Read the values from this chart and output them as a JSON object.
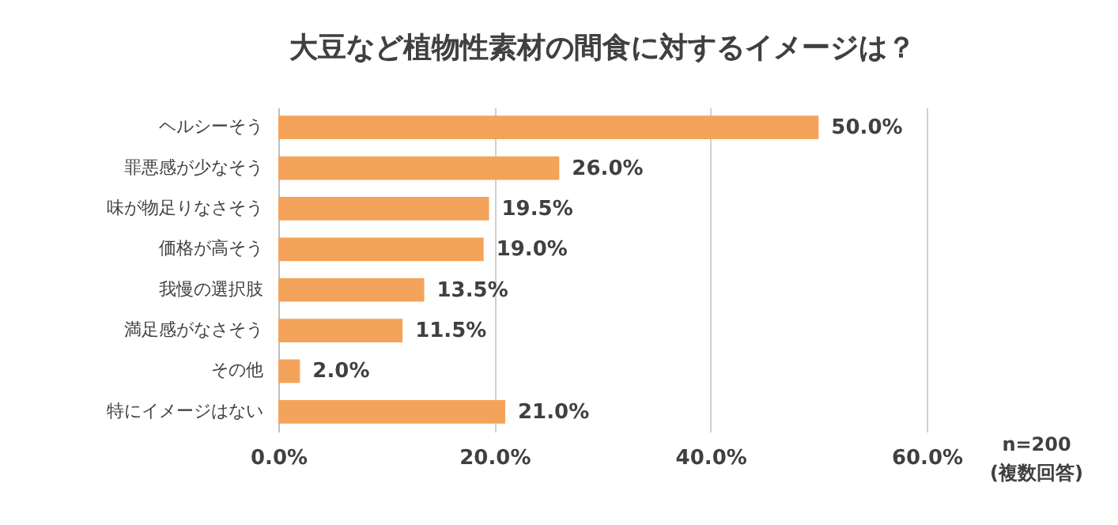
{
  "chart_data": {
    "type": "bar",
    "orientation": "horizontal",
    "title": "大豆など植物性素材の間食に対するイメージは？",
    "categories": [
      "ヘルシーそう",
      "罪悪感が少なそう",
      "味が物足りなさそう",
      "価格が高そう",
      "我慢の選択肢",
      "満足感がなさそう",
      "その他",
      "特にイメージはない"
    ],
    "values": [
      50.0,
      26.0,
      19.5,
      19.0,
      13.5,
      11.5,
      2.0,
      21.0
    ],
    "value_labels": [
      "50.0%",
      "26.0%",
      "19.5%",
      "19.0%",
      "13.5%",
      "11.5%",
      "2.0%",
      "21.0%"
    ],
    "color": "#f4a35a",
    "xlim": [
      0,
      60
    ],
    "xticks": [
      {
        "value": 0,
        "label": "0.0%"
      },
      {
        "value": 20,
        "label": "20.0%"
      },
      {
        "value": 40,
        "label": "40.0%"
      },
      {
        "value": 60,
        "label": "60.0%"
      }
    ],
    "grid": "x",
    "annotations": [
      "n=200",
      "(複数回答)"
    ]
  }
}
